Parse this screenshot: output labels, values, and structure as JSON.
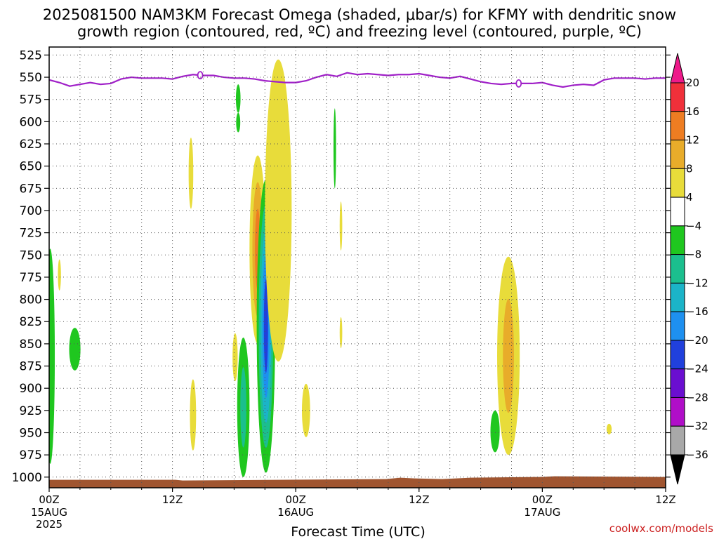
{
  "chart_data": {
    "type": "time-pressure cross-section (shaded contour)",
    "title_line1": "2025081500 NAM3KM Forecast Omega (shaded, μbar/s) for KFMY with dendritic snow",
    "title_line2": "growth region (contoured, red, ºC) and freezing level (contoured, purple, ºC)",
    "xlabel": "Forecast Time (UTC)",
    "x_range_hours": [
      0,
      36
    ],
    "x_ticks": [
      {
        "hour": 0,
        "label": "00Z",
        "sub1": "15AUG",
        "sub2": "2025"
      },
      {
        "hour": 12,
        "label": "12Z",
        "sub1": "",
        "sub2": ""
      },
      {
        "hour": 24,
        "label": "00Z",
        "sub1": "16AUG",
        "sub2": ""
      },
      {
        "hour": 36,
        "label": "12Z",
        "sub1": "",
        "sub2": ""
      },
      {
        "hour": 48,
        "label": "00Z",
        "sub1": "17AUG",
        "sub2": ""
      },
      {
        "hour": 60,
        "label": "12Z",
        "sub1": "",
        "sub2": ""
      }
    ],
    "x_hours_total": 60,
    "y_ticks_hPa": [
      525,
      550,
      575,
      600,
      625,
      650,
      675,
      700,
      725,
      750,
      775,
      800,
      825,
      850,
      875,
      900,
      925,
      950,
      975,
      1000
    ],
    "y_range_hPa": [
      516,
      1012
    ],
    "grid": "dotted",
    "colorbar": {
      "labels": [
        "20",
        "16",
        "12",
        "8",
        "4",
        "−4",
        "−8",
        "−12",
        "−16",
        "−20",
        "−24",
        "−28",
        "−32",
        "−36"
      ],
      "bins": [
        {
          "color": "#ee1a8a"
        },
        {
          "color": "#f0303a"
        },
        {
          "color": "#ee7d22"
        },
        {
          "color": "#e8ac2a"
        },
        {
          "color": "#e8dc3a"
        },
        {
          "color": "#ffffff"
        },
        {
          "color": "#1fc71f"
        },
        {
          "color": "#1bbf8e"
        },
        {
          "color": "#1bb4c8"
        },
        {
          "color": "#1e90f0"
        },
        {
          "color": "#2040dc"
        },
        {
          "color": "#6a0ed0"
        },
        {
          "color": "#b00ec8"
        },
        {
          "color": "#a8a8a8"
        },
        {
          "color": "#000000"
        }
      ]
    },
    "freezing_level": {
      "color": "#a020c8",
      "label": "0",
      "label_hours": [
        14.7,
        45.7
      ],
      "points": [
        [
          0,
          553
        ],
        [
          1,
          556
        ],
        [
          2,
          560
        ],
        [
          3,
          558
        ],
        [
          4,
          556
        ],
        [
          5,
          558
        ],
        [
          6,
          557
        ],
        [
          7,
          552
        ],
        [
          8,
          550
        ],
        [
          9,
          551
        ],
        [
          10,
          551
        ],
        [
          11,
          551
        ],
        [
          12,
          552
        ],
        [
          13,
          549
        ],
        [
          14,
          547
        ],
        [
          15,
          548
        ],
        [
          16,
          548
        ],
        [
          17,
          550
        ],
        [
          18,
          551
        ],
        [
          19,
          551
        ],
        [
          20,
          552
        ],
        [
          21,
          554
        ],
        [
          22,
          555
        ],
        [
          23,
          556
        ],
        [
          24,
          556
        ],
        [
          25,
          554
        ],
        [
          26,
          550
        ],
        [
          27,
          547
        ],
        [
          28,
          549
        ],
        [
          29,
          545
        ],
        [
          30,
          547
        ],
        [
          31,
          546
        ],
        [
          32,
          547
        ],
        [
          33,
          548
        ],
        [
          34,
          547
        ],
        [
          35,
          547
        ],
        [
          36,
          546
        ],
        [
          37,
          548
        ],
        [
          38,
          550
        ],
        [
          39,
          551
        ],
        [
          40,
          549
        ],
        [
          41,
          552
        ],
        [
          42,
          555
        ],
        [
          43,
          557
        ],
        [
          44,
          558
        ],
        [
          45,
          557
        ],
        [
          46,
          557
        ],
        [
          47,
          557
        ],
        [
          48,
          556
        ],
        [
          49,
          559
        ],
        [
          50,
          561
        ],
        [
          51,
          559
        ],
        [
          52,
          558
        ],
        [
          53,
          559
        ],
        [
          54,
          553
        ],
        [
          55,
          551
        ],
        [
          56,
          551
        ],
        [
          57,
          551
        ],
        [
          58,
          552
        ],
        [
          59,
          551
        ],
        [
          60,
          551
        ]
      ]
    },
    "omega_features": [
      {
        "hour": 0.1,
        "p_top": 743,
        "p_bot": 985,
        "width_h": 0.9,
        "value": -6
      },
      {
        "hour": 1.0,
        "p_top": 755,
        "p_bot": 790,
        "width_h": 0.3,
        "value": 5
      },
      {
        "hour": 2.5,
        "p_top": 832,
        "p_bot": 880,
        "width_h": 1.1,
        "value": -6
      },
      {
        "hour": 13.8,
        "p_top": 618,
        "p_bot": 698,
        "width_h": 0.45,
        "value": 5
      },
      {
        "hour": 14.0,
        "p_top": 890,
        "p_bot": 970,
        "width_h": 0.6,
        "value": 5
      },
      {
        "hour": 18.1,
        "p_top": 838,
        "p_bot": 892,
        "width_h": 0.5,
        "value": 5
      },
      {
        "hour": 18.4,
        "p_top": 590,
        "p_bot": 612,
        "width_h": 0.4,
        "value": -6
      },
      {
        "hour": 18.4,
        "p_top": 558,
        "p_bot": 590,
        "width_h": 0.45,
        "value": -6
      },
      {
        "hour": 18.9,
        "p_top": 843,
        "p_bot": 1000,
        "width_h": 1.2,
        "value": -8
      },
      {
        "hour": 20.3,
        "p_top": 638,
        "p_bot": 850,
        "width_h": 1.6,
        "value": 14
      },
      {
        "hour": 21.1,
        "p_top": 665,
        "p_bot": 995,
        "width_h": 1.8,
        "value": -22
      },
      {
        "hour": 22.3,
        "p_top": 530,
        "p_bot": 870,
        "width_h": 2.6,
        "value": 5
      },
      {
        "hour": 25.0,
        "p_top": 895,
        "p_bot": 955,
        "width_h": 0.8,
        "value": 5
      },
      {
        "hour": 27.8,
        "p_top": 585,
        "p_bot": 675,
        "width_h": 0.25,
        "value": -6
      },
      {
        "hour": 28.4,
        "p_top": 690,
        "p_bot": 745,
        "width_h": 0.25,
        "value": 5
      },
      {
        "hour": 28.4,
        "p_top": 820,
        "p_bot": 855,
        "width_h": 0.25,
        "value": 5
      },
      {
        "hour": 44.7,
        "p_top": 752,
        "p_bot": 975,
        "width_h": 2.2,
        "value": 10
      },
      {
        "hour": 43.4,
        "p_top": 925,
        "p_bot": 972,
        "width_h": 0.9,
        "value": -6
      },
      {
        "hour": 54.5,
        "p_top": 940,
        "p_bot": 952,
        "width_h": 0.5,
        "value": 5
      }
    ],
    "terrain_color": "#a05530"
  },
  "credit": "coolwx.com/models"
}
